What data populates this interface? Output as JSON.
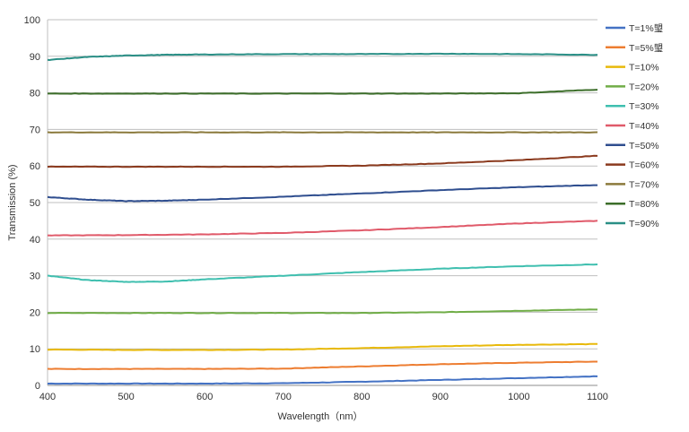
{
  "chart_data": {
    "type": "line",
    "xlabel": "Wavelength（nm）",
    "ylabel": "Transmission (%)",
    "xlim": [
      400,
      1100
    ],
    "ylim": [
      0,
      100
    ],
    "xticks": [
      400,
      500,
      600,
      700,
      800,
      900,
      1000,
      1100
    ],
    "yticks": [
      0,
      10,
      20,
      30,
      40,
      50,
      60,
      70,
      80,
      90,
      100
    ],
    "grid": "horizontal",
    "legend_position": "right",
    "series": [
      {
        "name": "T=1%琞",
        "color": "#4472c4",
        "x": [
          400,
          500,
          600,
          700,
          800,
          900,
          1000,
          1100
        ],
        "y": [
          0.5,
          0.5,
          0.5,
          0.6,
          1.0,
          1.5,
          2.0,
          2.5
        ]
      },
      {
        "name": "T=5%琞",
        "color": "#ed7d31",
        "x": [
          400,
          500,
          600,
          700,
          800,
          900,
          1000,
          1100
        ],
        "y": [
          4.5,
          4.5,
          4.5,
          4.6,
          5.2,
          5.8,
          6.2,
          6.5
        ]
      },
      {
        "name": "T=10%",
        "color": "#e8b90b",
        "x": [
          400,
          500,
          600,
          700,
          800,
          900,
          1000,
          1100
        ],
        "y": [
          9.8,
          9.7,
          9.7,
          9.8,
          10.2,
          10.7,
          11.1,
          11.3
        ]
      },
      {
        "name": "T=20%",
        "color": "#70ad47",
        "x": [
          400,
          500,
          600,
          700,
          800,
          900,
          1000,
          1100
        ],
        "y": [
          19.8,
          19.8,
          19.8,
          19.8,
          19.8,
          20.0,
          20.4,
          20.8
        ]
      },
      {
        "name": "T=30%",
        "color": "#3fbfaf",
        "x": [
          400,
          450,
          500,
          550,
          600,
          700,
          800,
          900,
          1000,
          1100
        ],
        "y": [
          30.0,
          28.8,
          28.3,
          28.4,
          29.0,
          30.0,
          31.0,
          31.9,
          32.6,
          33.1
        ]
      },
      {
        "name": "T=40%",
        "color": "#e05a6a",
        "x": [
          400,
          500,
          600,
          700,
          800,
          900,
          1000,
          1100
        ],
        "y": [
          41.0,
          41.1,
          41.3,
          41.7,
          42.4,
          43.3,
          44.3,
          45.0
        ]
      },
      {
        "name": "T=50%",
        "color": "#2f4e8f",
        "x": [
          400,
          450,
          500,
          550,
          600,
          700,
          800,
          900,
          1000,
          1100
        ],
        "y": [
          51.5,
          50.8,
          50.4,
          50.5,
          50.8,
          51.6,
          52.5,
          53.4,
          54.2,
          54.8
        ]
      },
      {
        "name": "T=60%",
        "color": "#8b3a1e",
        "x": [
          400,
          500,
          600,
          700,
          800,
          900,
          1000,
          1100
        ],
        "y": [
          59.8,
          59.8,
          59.8,
          59.8,
          60.1,
          60.7,
          61.6,
          62.8
        ]
      },
      {
        "name": "T=70%",
        "color": "#8b7a3c",
        "x": [
          400,
          500,
          600,
          700,
          800,
          900,
          1000,
          1100
        ],
        "y": [
          69.2,
          69.2,
          69.2,
          69.2,
          69.2,
          69.2,
          69.2,
          69.2
        ]
      },
      {
        "name": "T=80%",
        "color": "#3c6e2a",
        "x": [
          400,
          500,
          600,
          700,
          800,
          900,
          1000,
          1100
        ],
        "y": [
          79.8,
          79.8,
          79.8,
          79.8,
          79.8,
          79.8,
          79.9,
          80.9
        ]
      },
      {
        "name": "T=90%",
        "color": "#2a8f86",
        "x": [
          400,
          450,
          500,
          550,
          600,
          700,
          800,
          900,
          1000,
          1100
        ],
        "y": [
          89.0,
          89.8,
          90.2,
          90.4,
          90.5,
          90.6,
          90.6,
          90.7,
          90.6,
          90.4
        ]
      }
    ]
  }
}
